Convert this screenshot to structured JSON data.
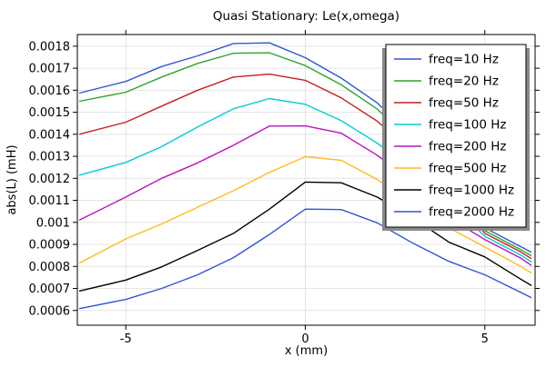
{
  "title": "Quasi Stationary: Le(x,omega)",
  "axes": {
    "x_label": "x (mm)",
    "y_label": "abs(L) (mH)",
    "x_ticks": [
      {
        "value": -5,
        "label": "-5"
      },
      {
        "value": 0,
        "label": "0"
      },
      {
        "value": 5,
        "label": "5"
      }
    ],
    "y_ticks": [
      {
        "value": 0.0018,
        "label": "0.0018"
      },
      {
        "value": 0.0017,
        "label": "0.0017"
      },
      {
        "value": 0.0016,
        "label": "0.0016"
      },
      {
        "value": 0.0015,
        "label": "0.0015"
      },
      {
        "value": 0.0014,
        "label": "0.0014"
      },
      {
        "value": 0.0013,
        "label": "0.0013"
      },
      {
        "value": 0.0012,
        "label": "0.0012"
      },
      {
        "value": 0.0011,
        "label": "0.0011"
      },
      {
        "value": 0.001,
        "label": "0.001"
      },
      {
        "value": 0.0009,
        "label": "0.0009"
      },
      {
        "value": 0.0008,
        "label": "0.0008"
      },
      {
        "value": 0.0007,
        "label": "0.0007"
      },
      {
        "value": 0.0006,
        "label": "0.0006"
      }
    ]
  },
  "chart_data": {
    "type": "line",
    "title": "Quasi Stationary: Le(x,omega)",
    "xlabel": "x (mm)",
    "ylabel": "abs(L) (mH)",
    "xlim": [
      -6.35,
      6.4
    ],
    "ylim": [
      0.000533,
      0.001853
    ],
    "grid": true,
    "legend_position": "top-right",
    "x": [
      -6.3,
      -5,
      -4,
      -3,
      -2,
      -1,
      0,
      1,
      2,
      3,
      4,
      5,
      6,
      6.3
    ],
    "series": [
      {
        "name": "freq=10 Hz",
        "color": "#2e56d4",
        "values": [
          0.001587,
          0.00164,
          0.001708,
          0.001756,
          0.001812,
          0.001815,
          0.001748,
          0.001655,
          0.001543,
          0.00139,
          0.001205,
          0.000975,
          0.00089,
          0.000864
        ]
      },
      {
        "name": "freq=20 Hz",
        "color": "#2da42d",
        "values": [
          0.00155,
          0.001591,
          0.00166,
          0.001722,
          0.001768,
          0.00177,
          0.001712,
          0.001625,
          0.001515,
          0.00136,
          0.001185,
          0.000962,
          0.000876,
          0.000848
        ]
      },
      {
        "name": "freq=50 Hz",
        "color": "#c81f1f",
        "values": [
          0.0014,
          0.001455,
          0.001528,
          0.0016,
          0.00166,
          0.001673,
          0.001645,
          0.001565,
          0.00146,
          0.00132,
          0.001155,
          0.00095,
          0.000866,
          0.000835
        ]
      },
      {
        "name": "freq=100 Hz",
        "color": "#00cdd7",
        "values": [
          0.001214,
          0.001272,
          0.001344,
          0.001433,
          0.001516,
          0.001562,
          0.001536,
          0.001462,
          0.00136,
          0.00124,
          0.00109,
          0.000937,
          0.000852,
          0.00082
        ]
      },
      {
        "name": "freq=200 Hz",
        "color": "#bf10bf",
        "values": [
          0.00101,
          0.001115,
          0.0012,
          0.00127,
          0.00135,
          0.001437,
          0.001438,
          0.001405,
          0.001305,
          0.00118,
          0.00102,
          0.000922,
          0.000838,
          0.000804
        ]
      },
      {
        "name": "freq=500 Hz",
        "color": "#ffbb1e",
        "values": [
          0.000815,
          0.000925,
          0.000993,
          0.001069,
          0.001144,
          0.001227,
          0.001298,
          0.001282,
          0.001195,
          0.001085,
          0.000975,
          0.000888,
          0.0008,
          0.00077
        ]
      },
      {
        "name": "freq=1000 Hz",
        "color": "#000000",
        "values": [
          0.000688,
          0.000738,
          0.000798,
          0.000873,
          0.00095,
          0.00106,
          0.001183,
          0.00118,
          0.001115,
          0.00102,
          0.00091,
          0.000843,
          0.000742,
          0.000713
        ]
      },
      {
        "name": "freq=2000 Hz",
        "color": "#2e56d4",
        "values": [
          0.000608,
          0.00065,
          0.0007,
          0.000762,
          0.00084,
          0.000945,
          0.00106,
          0.001058,
          0.000998,
          0.000905,
          0.000823,
          0.000762,
          0.000682,
          0.000658
        ]
      }
    ]
  }
}
